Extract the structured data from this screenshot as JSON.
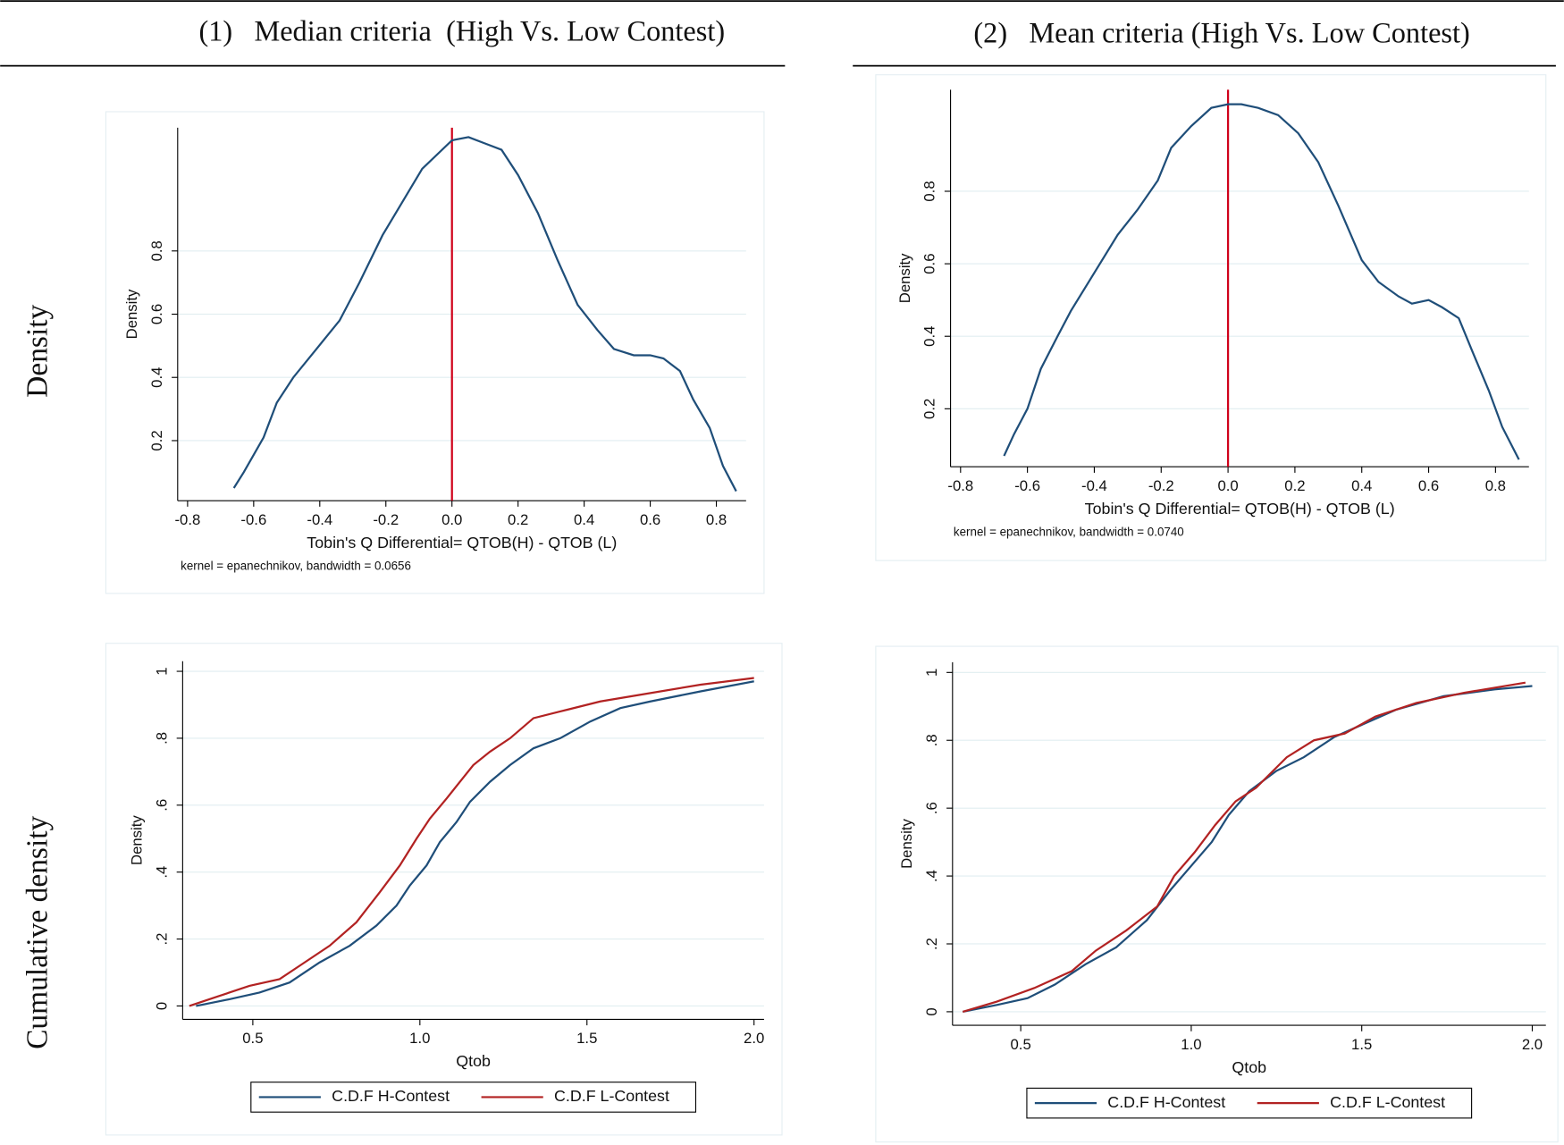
{
  "columns": [
    "(1)   Median criteria  (High Vs. Low Contest)",
    "(2)   Mean criteria (High Vs. Low Contest)"
  ],
  "rows": [
    "Density",
    "Cumulative density"
  ],
  "chart_data": [
    {
      "type": "line",
      "y_label": "Density",
      "x_label": "Tobin's Q Differential= QTOB(H) - QTOB (L)",
      "note": "kernel = epanechnikov, bandwidth = 0.0656",
      "color": "#1f4e79",
      "vline": 0,
      "vline_color": "#d0021b",
      "grid": true,
      "xlim": [
        -0.83,
        0.89
      ],
      "ylim": [
        0.01,
        1.19
      ],
      "xticks": [
        -0.8,
        -0.6,
        -0.4,
        -0.2,
        {
          "value": 0,
          "label": "0.0"
        },
        0.2,
        0.4,
        0.6,
        0.8
      ],
      "yticks": [
        0.2,
        0.4,
        0.6,
        0.8
      ],
      "x": [
        -0.66,
        -0.63,
        -0.57,
        -0.53,
        -0.48,
        -0.41,
        -0.34,
        -0.28,
        -0.21,
        -0.13,
        -0.09,
        0.0,
        0.05,
        0.1,
        0.15,
        0.2,
        0.26,
        0.32,
        0.38,
        0.44,
        0.49,
        0.55,
        0.6,
        0.64,
        0.69,
        0.73,
        0.78,
        0.82,
        0.86
      ],
      "values": [
        0.05,
        0.1,
        0.21,
        0.32,
        0.4,
        0.49,
        0.58,
        0.7,
        0.85,
        0.99,
        1.06,
        1.15,
        1.16,
        1.14,
        1.12,
        1.04,
        0.92,
        0.77,
        0.63,
        0.55,
        0.49,
        0.47,
        0.47,
        0.46,
        0.42,
        0.33,
        0.24,
        0.12,
        0.04
      ]
    },
    {
      "type": "line",
      "y_label": "Density",
      "x_label": "Tobin's Q Differential= QTOB(H) - QTOB (L)",
      "note": "kernel = epanechnikov, bandwidth = 0.0740",
      "color": "#1f4e79",
      "vline": 0,
      "vline_color": "#d0021b",
      "grid": true,
      "xlim": [
        -0.83,
        0.9
      ],
      "ylim": [
        0.04,
        1.08
      ],
      "xticks": [
        -0.8,
        -0.6,
        -0.4,
        -0.2,
        {
          "value": 0,
          "label": "0.0"
        },
        0.2,
        0.4,
        0.6,
        0.8
      ],
      "yticks": [
        0.2,
        0.4,
        0.6,
        0.8
      ],
      "x": [
        -0.67,
        -0.64,
        -0.6,
        -0.56,
        -0.51,
        -0.47,
        -0.41,
        -0.33,
        -0.27,
        -0.21,
        -0.17,
        -0.11,
        -0.05,
        0.0,
        0.04,
        0.09,
        0.15,
        0.21,
        0.27,
        0.33,
        0.4,
        0.45,
        0.51,
        0.55,
        0.6,
        0.64,
        0.69,
        0.73,
        0.78,
        0.82,
        0.87
      ],
      "values": [
        0.07,
        0.13,
        0.2,
        0.31,
        0.4,
        0.47,
        0.56,
        0.68,
        0.75,
        0.83,
        0.92,
        0.98,
        1.03,
        1.04,
        1.04,
        1.03,
        1.01,
        0.96,
        0.88,
        0.76,
        0.61,
        0.55,
        0.51,
        0.49,
        0.5,
        0.48,
        0.45,
        0.36,
        0.25,
        0.15,
        0.06
      ]
    },
    {
      "type": "line",
      "y_label": "Density",
      "x_label": "Qtob",
      "grid": true,
      "legend": "bottom",
      "xlim": [
        0.29,
        2.03
      ],
      "ylim": [
        -0.04,
        1.03
      ],
      "xticks": [
        0.5,
        {
          "value": 1,
          "label": "1.0"
        },
        1.5,
        {
          "value": 2,
          "label": "2.0"
        }
      ],
      "yticks": [
        0,
        {
          "value": 0.2,
          "label": ".2"
        },
        {
          "value": 0.4,
          "label": ".4"
        },
        {
          "value": 0.6,
          "label": ".6"
        },
        {
          "value": 0.8,
          "label": ".8"
        },
        1
      ],
      "series": [
        {
          "name": "C.D.F H-Contest",
          "color": "#1f4e79",
          "x": [
            0.33,
            0.43,
            0.52,
            0.61,
            0.7,
            0.79,
            0.87,
            0.93,
            0.97,
            1.02,
            1.06,
            1.11,
            1.15,
            1.21,
            1.27,
            1.34,
            1.42,
            1.51,
            1.6,
            1.69,
            1.84,
            2.0
          ],
          "values": [
            0,
            0.02,
            0.04,
            0.07,
            0.13,
            0.18,
            0.24,
            0.3,
            0.36,
            0.42,
            0.49,
            0.55,
            0.61,
            0.67,
            0.72,
            0.77,
            0.8,
            0.85,
            0.89,
            0.91,
            0.94,
            0.97
          ]
        },
        {
          "name": "C.D.F L-Contest",
          "color": "#b22222",
          "x": [
            0.31,
            0.4,
            0.49,
            0.58,
            0.64,
            0.73,
            0.81,
            0.88,
            0.94,
            0.99,
            1.03,
            1.08,
            1.12,
            1.16,
            1.21,
            1.27,
            1.34,
            1.42,
            1.54,
            1.66,
            1.84,
            2.0
          ],
          "values": [
            0,
            0.03,
            0.06,
            0.08,
            0.12,
            0.18,
            0.25,
            0.34,
            0.42,
            0.5,
            0.56,
            0.62,
            0.67,
            0.72,
            0.76,
            0.8,
            0.86,
            0.88,
            0.91,
            0.93,
            0.96,
            0.98
          ]
        }
      ]
    },
    {
      "type": "line",
      "y_label": "Density",
      "x_label": "Qtob",
      "grid": true,
      "legend": "bottom",
      "xlim": [
        0.3,
        2.04
      ],
      "ylim": [
        -0.04,
        1.03
      ],
      "xticks": [
        0.5,
        {
          "value": 1,
          "label": "1.0"
        },
        1.5,
        {
          "value": 2,
          "label": "2.0"
        }
      ],
      "yticks": [
        0,
        {
          "value": 0.2,
          "label": ".2"
        },
        {
          "value": 0.4,
          "label": ".4"
        },
        {
          "value": 0.6,
          "label": ".6"
        },
        {
          "value": 0.8,
          "label": ".8"
        },
        1
      ],
      "series": [
        {
          "name": "C.D.F H-Contest",
          "color": "#1f4e79",
          "x": [
            0.33,
            0.43,
            0.52,
            0.6,
            0.69,
            0.78,
            0.87,
            0.94,
            1.0,
            1.06,
            1.11,
            1.17,
            1.25,
            1.33,
            1.42,
            1.51,
            1.6,
            1.74,
            1.89,
            2.0
          ],
          "values": [
            0,
            0.02,
            0.04,
            0.08,
            0.14,
            0.19,
            0.27,
            0.36,
            0.43,
            0.5,
            0.58,
            0.65,
            0.71,
            0.75,
            0.81,
            0.85,
            0.89,
            0.93,
            0.95,
            0.96
          ]
        },
        {
          "name": "C.D.F L-Contest",
          "color": "#b22222",
          "x": [
            0.33,
            0.43,
            0.54,
            0.65,
            0.72,
            0.81,
            0.9,
            0.95,
            1.01,
            1.07,
            1.13,
            1.19,
            1.28,
            1.36,
            1.45,
            1.54,
            1.66,
            1.8,
            1.98
          ],
          "values": [
            0,
            0.03,
            0.07,
            0.12,
            0.18,
            0.24,
            0.31,
            0.4,
            0.47,
            0.55,
            0.62,
            0.66,
            0.75,
            0.8,
            0.82,
            0.87,
            0.91,
            0.94,
            0.97
          ]
        }
      ]
    }
  ]
}
